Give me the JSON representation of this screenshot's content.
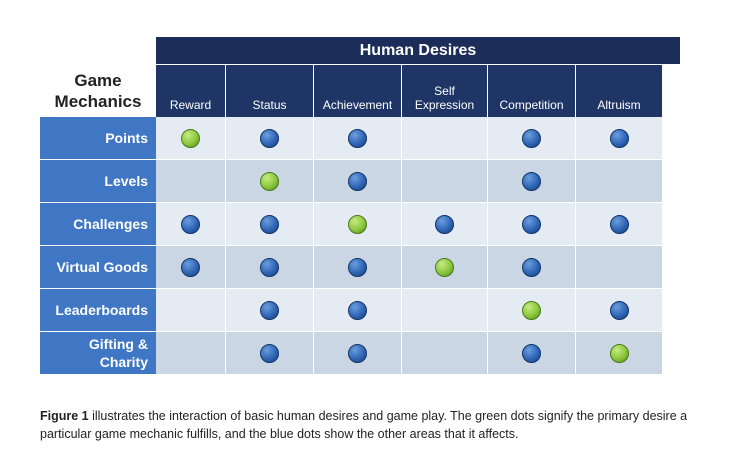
{
  "table": {
    "header_title": "Human Desires",
    "corner_label": "Game\nMechanics",
    "columns": [
      "Reward",
      "Status",
      "Achievement",
      "Self\nExpression",
      "Competition",
      "Altruism"
    ],
    "colors": {
      "primary_desire": "#8bc63e",
      "other_desire": "#2f65b4",
      "row_label_bg": "#3f77c4",
      "header_bg": "#1c2d5a"
    },
    "rows": [
      {
        "label": "Points",
        "cells": [
          "green",
          "blue",
          "blue",
          "",
          "blue",
          "blue"
        ]
      },
      {
        "label": "Levels",
        "cells": [
          "",
          "green",
          "blue",
          "",
          "blue",
          ""
        ]
      },
      {
        "label": "Challenges",
        "cells": [
          "blue",
          "blue",
          "green",
          "blue",
          "blue",
          "blue"
        ]
      },
      {
        "label": "Virtual Goods",
        "cells": [
          "blue",
          "blue",
          "blue",
          "green",
          "blue",
          ""
        ]
      },
      {
        "label": "Leaderboards",
        "cells": [
          "",
          "blue",
          "blue",
          "",
          "green",
          "blue"
        ]
      },
      {
        "label": "Gifting &\nCharity",
        "cells": [
          "",
          "blue",
          "blue",
          "",
          "blue",
          "green"
        ]
      }
    ]
  },
  "caption": {
    "lead": "Figure 1",
    "text": " illustrates the interaction of basic human desires and game play. The green dots signify the primary desire a particular game mechanic fulfills, and the blue dots show the other areas that it affects."
  }
}
